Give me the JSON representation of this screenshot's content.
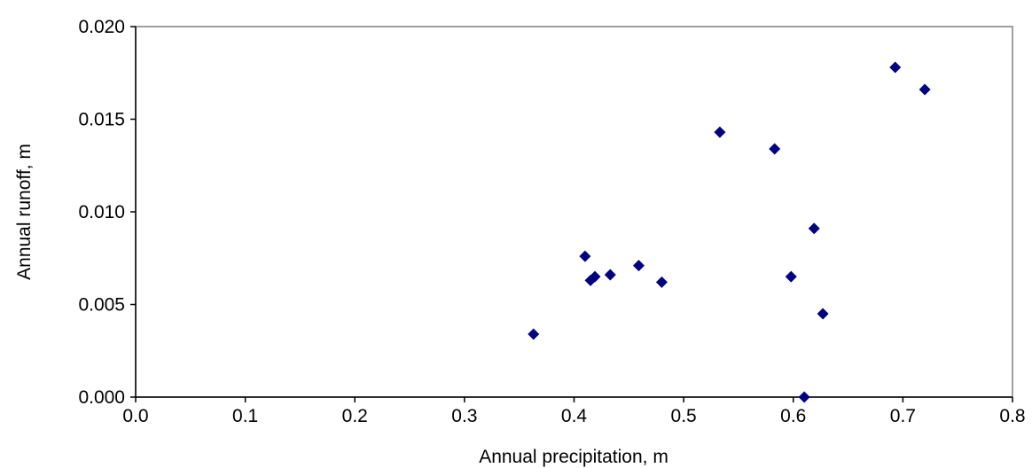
{
  "chart_data": {
    "type": "scatter",
    "title": "",
    "xlabel": "Annual precipitation, m",
    "ylabel": "Annual runoff, m",
    "xlim": [
      0.0,
      0.8
    ],
    "ylim": [
      0.0,
      0.02
    ],
    "xticks": [
      "0.0",
      "0.1",
      "0.2",
      "0.3",
      "0.4",
      "0.5",
      "0.6",
      "0.7",
      "0.8"
    ],
    "yticks": [
      "0.000",
      "0.005",
      "0.010",
      "0.015",
      "0.020"
    ],
    "grid": false,
    "legend": "none",
    "marker": "diamond",
    "marker_color": "#000080",
    "points": [
      {
        "x": 0.363,
        "y": 0.0034
      },
      {
        "x": 0.41,
        "y": 0.0076
      },
      {
        "x": 0.415,
        "y": 0.0063
      },
      {
        "x": 0.419,
        "y": 0.0065
      },
      {
        "x": 0.433,
        "y": 0.0066
      },
      {
        "x": 0.459,
        "y": 0.0071
      },
      {
        "x": 0.48,
        "y": 0.0062
      },
      {
        "x": 0.533,
        "y": 0.0143
      },
      {
        "x": 0.583,
        "y": 0.0134
      },
      {
        "x": 0.598,
        "y": 0.0065
      },
      {
        "x": 0.61,
        "y": 0.0
      },
      {
        "x": 0.619,
        "y": 0.0091
      },
      {
        "x": 0.627,
        "y": 0.0045
      },
      {
        "x": 0.693,
        "y": 0.0178
      },
      {
        "x": 0.72,
        "y": 0.0166
      }
    ]
  }
}
